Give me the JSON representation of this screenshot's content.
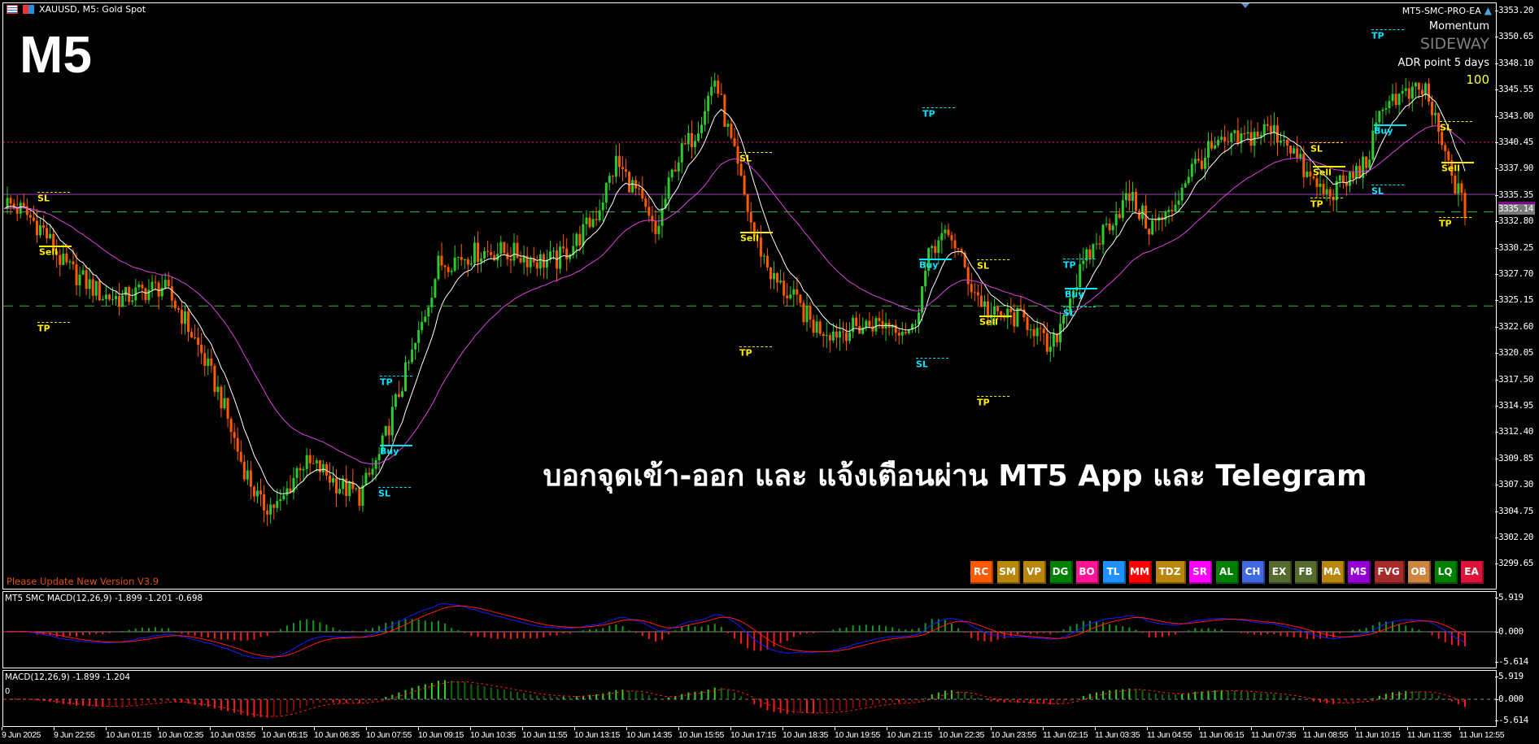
{
  "window": {
    "title": "XAUUSD, M5:  Gold Spot",
    "ea_name": "MT5-SMC-PRO-EA"
  },
  "overlay": {
    "timeframe": "M5",
    "headline": "บอกจุดเข้า-ออก และ แจ้งเตือนผ่าน MT5 App และ Telegram",
    "update_notice": "Please Update New Version V3.9"
  },
  "info": {
    "momentum_label": "Momentum",
    "momentum_value": "SIDEWAY",
    "adr_label": "ADR point 5 days",
    "adr_value": "100"
  },
  "colors": {
    "bull": "#2ec92e",
    "bear": "#ff5a00",
    "fast_ma": "#ffffff",
    "slow_ma": "#e040e0",
    "buy": "#00e5ff",
    "sell": "#ffee00",
    "macd": "#1a1aff",
    "signal": "#ff1a1a"
  },
  "buttons": [
    {
      "label": "RC",
      "color": "#ff5a00"
    },
    {
      "label": "SM",
      "color": "#b8860b"
    },
    {
      "label": "VP",
      "color": "#b8860b"
    },
    {
      "label": "DG",
      "color": "#008000"
    },
    {
      "label": "BO",
      "color": "#ff1493"
    },
    {
      "label": "TL",
      "color": "#1e90ff"
    },
    {
      "label": "MM",
      "color": "#ff0000"
    },
    {
      "label": "TDZ",
      "color": "#b8860b"
    },
    {
      "label": "SR",
      "color": "#ff00ff"
    },
    {
      "label": "AL",
      "color": "#008000"
    },
    {
      "label": "CH",
      "color": "#4169e1"
    },
    {
      "label": "EX",
      "color": "#556b2f"
    },
    {
      "label": "FB",
      "color": "#556b2f"
    },
    {
      "label": "MA",
      "color": "#b8860b"
    },
    {
      "label": "MS",
      "color": "#9400d3"
    },
    {
      "label": "FVG",
      "color": "#a52a2a"
    },
    {
      "label": "OB",
      "color": "#cd853f"
    },
    {
      "label": "LQ",
      "color": "#008000"
    },
    {
      "label": "EA",
      "color": "#dc143c"
    }
  ],
  "markers": [
    {
      "text": "SL",
      "side": "sell"
    },
    {
      "text": "Sell",
      "side": "sell"
    },
    {
      "text": "TP",
      "side": "sell"
    },
    {
      "text": "TP",
      "side": "buy"
    },
    {
      "text": "Buy",
      "side": "buy"
    },
    {
      "text": "SL",
      "side": "buy"
    },
    {
      "text": "TP",
      "side": "buy"
    },
    {
      "text": "SL",
      "side": "sell"
    },
    {
      "text": "Sell",
      "side": "sell"
    },
    {
      "text": "TP",
      "side": "sell"
    },
    {
      "text": "Buy",
      "side": "buy"
    },
    {
      "text": "SL",
      "side": "buy"
    },
    {
      "text": "SL",
      "side": "sell"
    },
    {
      "text": "Sell",
      "side": "sell"
    },
    {
      "text": "TP",
      "side": "sell"
    },
    {
      "text": "TP",
      "side": "buy"
    },
    {
      "text": "Buy",
      "side": "buy"
    },
    {
      "text": "SL",
      "side": "buy"
    },
    {
      "text": "SL",
      "side": "sell"
    },
    {
      "text": "Sell",
      "side": "sell"
    },
    {
      "text": "TP",
      "side": "sell"
    },
    {
      "text": "TP",
      "side": "buy"
    },
    {
      "text": "Buy",
      "side": "buy"
    },
    {
      "text": "SL",
      "side": "buy"
    },
    {
      "text": "SL",
      "side": "sell"
    },
    {
      "text": "Sell",
      "side": "sell"
    },
    {
      "text": "TP",
      "side": "sell"
    }
  ],
  "chart_data": {
    "type": "candlestick",
    "symbol": "XAUUSD",
    "timeframe": "M5",
    "ylim": [
      3298.5,
      3354.2
    ],
    "y_ticks": [
      "3353.20",
      "3350.65",
      "3348.10",
      "3345.55",
      "3343.00",
      "3340.45",
      "3337.90",
      "3335.35",
      "3332.80",
      "3330.25",
      "3327.70",
      "3325.15",
      "3322.60",
      "3320.05",
      "3317.50",
      "3314.95",
      "3312.40",
      "3309.85",
      "3307.30",
      "3304.75",
      "3302.20",
      "3299.65"
    ],
    "current_price": "3335.14",
    "levels": [
      {
        "price": 3340.45,
        "style": "dotted",
        "color": "#ff1493"
      },
      {
        "price": 3335.4,
        "style": "solid",
        "color": "#a040c0"
      },
      {
        "price": 3333.7,
        "style": "dashed",
        "color": "#3cb043"
      },
      {
        "price": 3324.6,
        "style": "dashed",
        "color": "#3cb043"
      }
    ],
    "x_ticks": [
      "9 Jun 2025",
      "9 Jun 22:55",
      "10 Jun 01:15",
      "10 Jun 02:35",
      "10 Jun 03:55",
      "10 Jun 05:15",
      "10 Jun 06:35",
      "10 Jun 07:55",
      "10 Jun 09:15",
      "10 Jun 10:35",
      "10 Jun 11:55",
      "10 Jun 13:15",
      "10 Jun 14:35",
      "10 Jun 15:55",
      "10 Jun 17:15",
      "10 Jun 18:35",
      "10 Jun 19:55",
      "10 Jun 21:15",
      "10 Jun 22:35",
      "10 Jun 23:55",
      "11 Jun 02:15",
      "11 Jun 03:35",
      "11 Jun 04:55",
      "11 Jun 06:15",
      "11 Jun 07:35",
      "11 Jun 08:55",
      "11 Jun 10:15",
      "11 Jun 11:35",
      "11 Jun 12:55"
    ],
    "close_path": [
      3334.7,
      3333.7,
      3331.9,
      3328.6,
      3327.1,
      3325.6,
      3325.3,
      3326.0,
      3326.5,
      3323.8,
      3320.0,
      3315.6,
      3309.6,
      3305.3,
      3305.3,
      3309.4,
      3308.8,
      3307.2,
      3306.2,
      3310.0,
      3316.2,
      3321.7,
      3328.6,
      3329.3,
      3329.8,
      3329.9,
      3329.6,
      3329.0,
      3329.0,
      3330.9,
      3333.5,
      3338.5,
      3335.7,
      3331.4,
      3338.5,
      3341.4,
      3346.6,
      3339.0,
      3331.4,
      3327.1,
      3325.2,
      3322.7,
      3322.1,
      3322.4,
      3322.9,
      3322.9,
      3322.2,
      3330.5,
      3331.4,
      3326.5,
      3323.6,
      3323.6,
      3323.0,
      3320.0,
      3325.7,
      3329.7,
      3332.8,
      3335.2,
      3332.3,
      3333.3,
      3337.6,
      3339.5,
      3340.4,
      3340.9,
      3341.7,
      3340.7,
      3337.1,
      3335.4,
      3336.6,
      3338.5,
      3344.7,
      3344.9,
      3345.5,
      3339.0,
      3333.8
    ],
    "macd_panel_1": {
      "label": "MT5 SMC MACD(12,26,9) -1.899 -1.201 -0.698",
      "y_ticks": [
        "5.919",
        "0.000",
        "-5.614"
      ],
      "ylim": [
        -5.614,
        5.919
      ]
    },
    "macd_panel_2": {
      "label": "MACD(12,26,9) -1.899 -1.204",
      "zero_label": "0",
      "y_ticks": [
        "5.919",
        "0.000",
        "-5.614"
      ],
      "ylim": [
        -5.614,
        5.919
      ]
    }
  }
}
